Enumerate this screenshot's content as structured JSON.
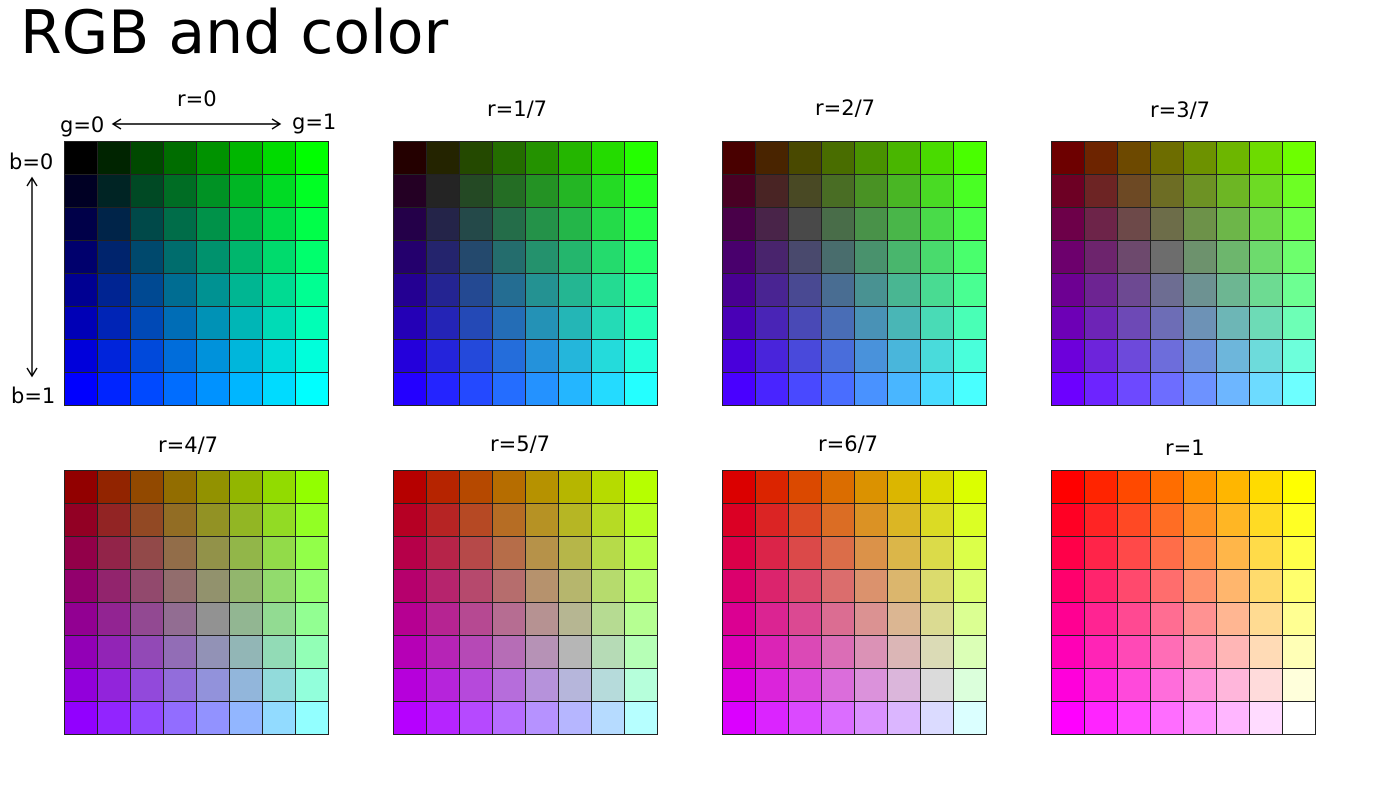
{
  "title": "RGB and color",
  "steps": 8,
  "cell_colors_by_level": [
    "00",
    "24",
    "49",
    "6D",
    "92",
    "B6",
    "DB",
    "FF"
  ],
  "axis_labels": {
    "g_start": "g=0",
    "g_end": "g=1",
    "b_start": "b=0",
    "b_end": "b=1"
  },
  "panels": [
    {
      "label": "r=0",
      "r": 0
    },
    {
      "label": "r=1/7",
      "r": 1
    },
    {
      "label": "r=2/7",
      "r": 2
    },
    {
      "label": "r=3/7",
      "r": 3
    },
    {
      "label": "r=4/7",
      "r": 4
    },
    {
      "label": "r=5/7",
      "r": 5
    },
    {
      "label": "r=6/7",
      "r": 6
    },
    {
      "label": "r=1",
      "r": 7
    }
  ],
  "grid_line_color": "#222222"
}
